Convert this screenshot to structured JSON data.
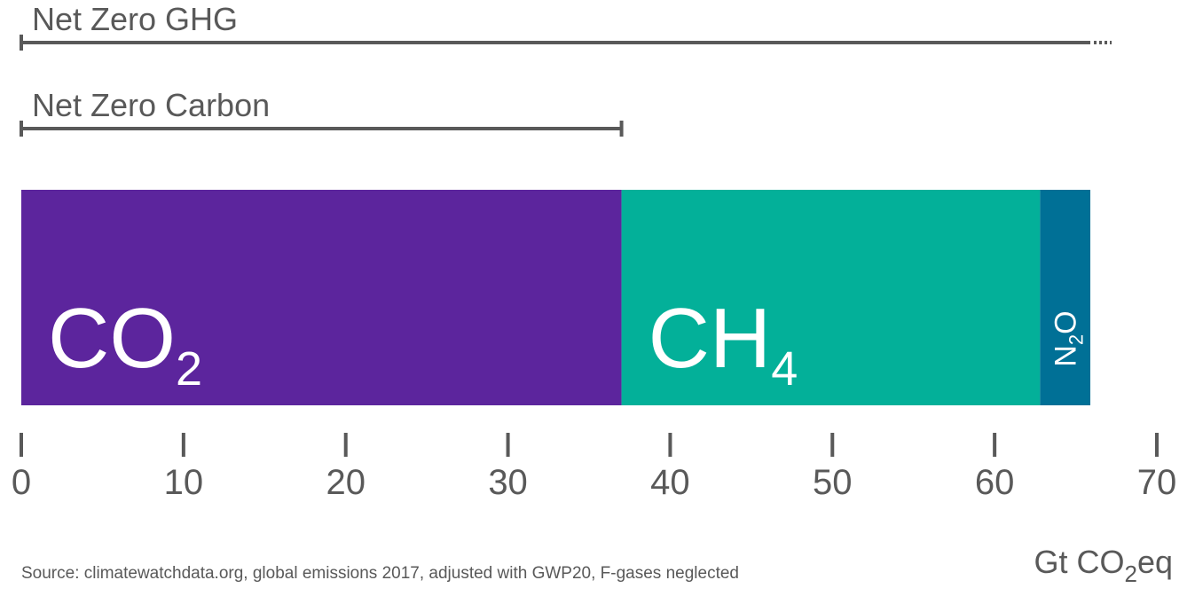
{
  "chart_data": {
    "type": "bar",
    "orientation": "horizontal-stacked",
    "xlim": [
      0,
      70
    ],
    "ticks": [
      "0",
      "10",
      "20",
      "30",
      "40",
      "50",
      "60",
      "70"
    ],
    "tick_values": [
      0,
      10,
      20,
      30,
      40,
      50,
      60,
      70
    ],
    "series": [
      {
        "name": "CO",
        "subscript": "2",
        "value": 37,
        "color": "#5c259d"
      },
      {
        "name": "CH",
        "subscript": "4",
        "value": 25.8,
        "color": "#03b099"
      },
      {
        "name": "N",
        "subscript": "2",
        "suffix": "O",
        "value": 3.1,
        "color": "#007096"
      }
    ],
    "ranges": [
      {
        "label": "Net Zero GHG",
        "start": 0,
        "end": 65.9,
        "continues": true
      },
      {
        "label": "Net Zero Carbon",
        "start": 0,
        "end": 37
      }
    ],
    "unit": {
      "main": "Gt CO",
      "subscript": "2",
      "suffix": "eq"
    },
    "source": "Source: climatewatchdata.org, global emissions 2017, adjusted with GWP20, F-gases neglected",
    "colors": {
      "axis": "#595959",
      "text": "#595959",
      "label": "#ffffff"
    }
  }
}
